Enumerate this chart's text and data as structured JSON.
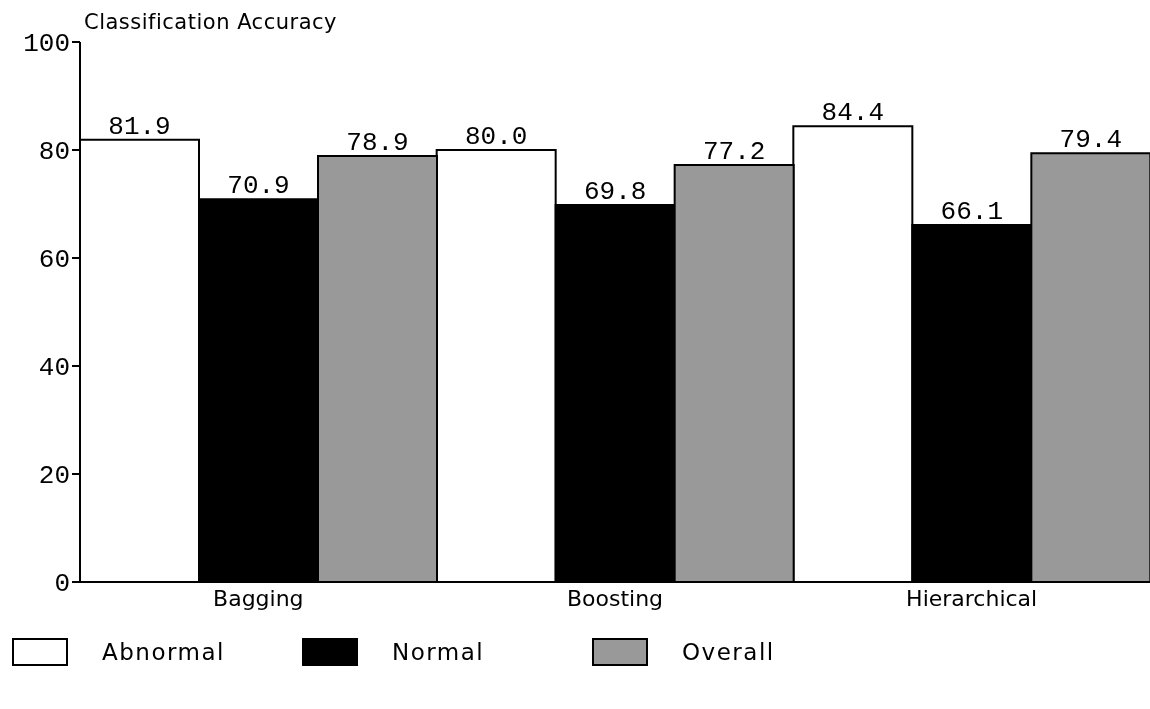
{
  "chart_data": {
    "type": "bar",
    "ylabel": "Classification Accuracy",
    "categories": [
      "Bagging",
      "Boosting",
      "Hierarchical"
    ],
    "series": [
      {
        "name": "Abnormal",
        "color": "#ffffff",
        "values": [
          81.9,
          80.0,
          84.4
        ],
        "value_labels": [
          "81.9",
          "80.0",
          "84.4"
        ]
      },
      {
        "name": "Normal",
        "color": "#000000",
        "values": [
          70.9,
          69.8,
          66.1
        ],
        "value_labels": [
          "70.9",
          "69.8",
          "66.1"
        ]
      },
      {
        "name": "Overall",
        "color": "#999999",
        "values": [
          78.9,
          77.2,
          79.4
        ],
        "value_labels": [
          "78.9",
          "77.2",
          "79.4"
        ]
      }
    ],
    "ylim": [
      0,
      100
    ],
    "yticks": [
      0,
      20,
      40,
      60,
      80,
      100
    ],
    "grid": false,
    "legend": "bottom"
  }
}
